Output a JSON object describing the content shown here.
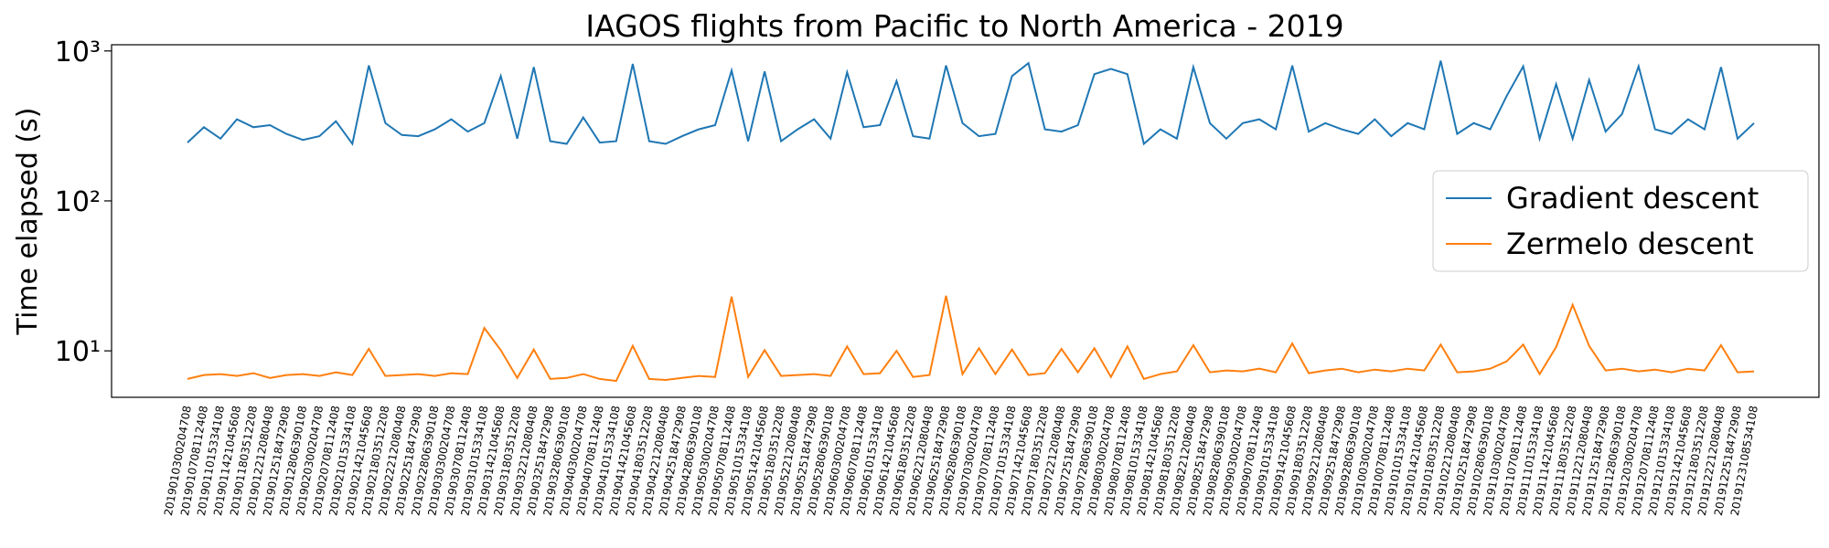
{
  "chart_data": {
    "type": "line",
    "title": "IAGOS flights from Pacific to North America - 2019",
    "y_label": "Time elapsed (s)",
    "yscale": "log",
    "ylim": [
      4.9,
      1100
    ],
    "yticks": [
      {
        "value": 10,
        "label": "10¹"
      },
      {
        "value": 100,
        "label": "10²"
      },
      {
        "value": 1000,
        "label": "10³"
      }
    ],
    "legend": "center right",
    "categories": [
      "2019010300204708",
      "2019010708112408",
      "2019011015334108",
      "2019011421045608",
      "2019011803512208",
      "2019012212080408",
      "2019012518472908",
      "2019012806390108",
      "2019020300204708",
      "2019020708112408",
      "2019021015334108",
      "2019021421045608",
      "2019021803512208",
      "2019022212080408",
      "2019022518472908",
      "2019022806390108",
      "2019030300204708",
      "2019030708112408",
      "2019031015334108",
      "2019031421045608",
      "2019031803512208",
      "2019032212080408",
      "2019032518472908",
      "2019032806390108",
      "2019040300204708",
      "2019040708112408",
      "2019041015334108",
      "2019041421045608",
      "2019041803512208",
      "2019042212080408",
      "2019042518472908",
      "2019042806390108",
      "2019050300204708",
      "2019050708112408",
      "2019051015334108",
      "2019051421045608",
      "2019051803512208",
      "2019052212080408",
      "2019052518472908",
      "2019052806390108",
      "2019060300204708",
      "2019060708112408",
      "2019061015334108",
      "2019061421045608",
      "2019061803512208",
      "2019062212080408",
      "2019062518472908",
      "2019062806390108",
      "2019070300204708",
      "2019070708112408",
      "2019071015334108",
      "2019071421045608",
      "2019071803512208",
      "2019072212080408",
      "2019072518472908",
      "2019072806390108",
      "2019080300204708",
      "2019080708112408",
      "2019081015334108",
      "2019081421045608",
      "2019081803512208",
      "2019082212080408",
      "2019082518472908",
      "2019082806390108",
      "2019090300204708",
      "2019090708112408",
      "2019091015334108",
      "2019091421045608",
      "2019091803512208",
      "2019092212080408",
      "2019092518472908",
      "2019092806390108",
      "2019100300204708",
      "2019100708112408",
      "2019101015334108",
      "2019101421045608",
      "2019101803512208",
      "2019102212080408",
      "2019102518472908",
      "2019102806390108",
      "2019110300204708",
      "2019110708112408",
      "2019111015334108",
      "2019111421045608",
      "2019111803512208",
      "2019112212080408",
      "2019112518472908",
      "2019112806390108",
      "2019120300204708",
      "2019120708112408",
      "2019121015334108",
      "2019121421045608",
      "2019121803512208",
      "2019122212080408",
      "2019122518472908",
      "2019123108534108"
    ],
    "series": [
      {
        "name": "Gradient descent",
        "color": "#1f77b4",
        "values": [
          245,
          310,
          260,
          350,
          310,
          320,
          280,
          255,
          270,
          340,
          240,
          800,
          330,
          275,
          270,
          300,
          350,
          290,
          330,
          680,
          260,
          780,
          250,
          240,
          360,
          245,
          250,
          820,
          250,
          240,
          270,
          300,
          320,
          740,
          250,
          730,
          250,
          300,
          350,
          260,
          720,
          310,
          320,
          630,
          270,
          260,
          800,
          330,
          270,
          280,
          680,
          830,
          300,
          290,
          320,
          700,
          760,
          700,
          240,
          300,
          260,
          780,
          330,
          260,
          330,
          350,
          300,
          800,
          290,
          330,
          300,
          280,
          350,
          270,
          330,
          300,
          860,
          280,
          330,
          300,
          500,
          790,
          260,
          600,
          260,
          640,
          290,
          380,
          790,
          300,
          280,
          350,
          300,
          780,
          260,
          330
        ]
      },
      {
        "name": "Zermelo descent",
        "color": "#ff7f0e",
        "values": [
          6.5,
          6.9,
          7.0,
          6.8,
          7.1,
          6.6,
          6.9,
          7.0,
          6.8,
          7.2,
          6.9,
          10.3,
          6.8,
          6.9,
          7.0,
          6.8,
          7.1,
          7.0,
          14.2,
          10.1,
          6.6,
          10.2,
          6.5,
          6.6,
          7.0,
          6.5,
          6.3,
          10.8,
          6.5,
          6.4,
          6.6,
          6.8,
          6.7,
          23.0,
          6.7,
          10.1,
          6.8,
          6.9,
          7.0,
          6.8,
          10.7,
          7.0,
          7.1,
          10.0,
          6.7,
          6.9,
          23.3,
          7.0,
          10.4,
          7.0,
          10.2,
          6.9,
          7.1,
          10.3,
          7.2,
          10.4,
          6.7,
          10.7,
          6.5,
          7.0,
          7.3,
          10.9,
          7.2,
          7.4,
          7.3,
          7.6,
          7.2,
          11.2,
          7.1,
          7.4,
          7.6,
          7.2,
          7.5,
          7.3,
          7.6,
          7.4,
          11.0,
          7.2,
          7.3,
          7.6,
          8.5,
          11.0,
          7.0,
          10.6,
          20.3,
          10.8,
          7.4,
          7.6,
          7.3,
          7.5,
          7.2,
          7.6,
          7.4,
          10.9,
          7.2,
          7.3
        ]
      }
    ]
  }
}
